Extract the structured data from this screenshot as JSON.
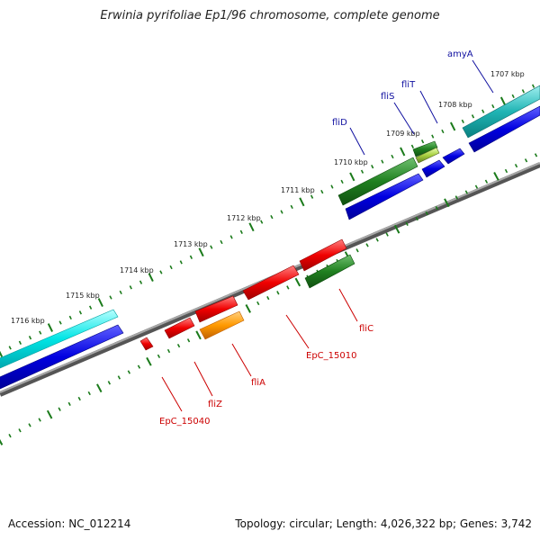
{
  "title": "Erwinia pyrifoliae Ep1/96 chromosome, complete genome",
  "footer": {
    "accession": "Accession: NC_012214",
    "stats": "Topology: circular; Length: 4,026,322 bp; Genes: 3,742"
  },
  "colors": {
    "backbone": "#808080",
    "tick": "#1a7a1a",
    "label_top": "#1010a0",
    "label_bottom": "#cc0000",
    "scale_text": "#222222"
  },
  "scale_labels": [
    "1707 kbp",
    "1708 kbp",
    "1709 kbp",
    "1710 kbp",
    "1711 kbp",
    "1712 kbp",
    "1713 kbp",
    "1714 kbp",
    "1715 kbp",
    "1716 kbp"
  ],
  "top_genes": [
    "amyA",
    "fliT",
    "fliS",
    "fliD"
  ],
  "bottom_genes": [
    "fliC",
    "EpC_15010",
    "fliA",
    "fliZ",
    "EpC_15040"
  ]
}
